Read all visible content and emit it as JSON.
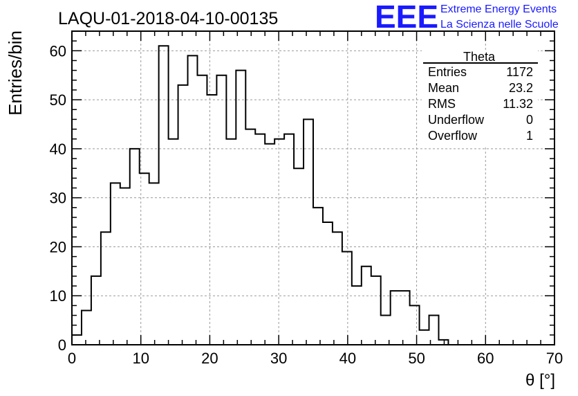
{
  "header": {
    "run_title": "LAQU-01-2018-04-10-00135",
    "logo_text": "EEE",
    "logo_line1": "Extreme Energy Events",
    "logo_line2": "La Scienza nelle Scuole",
    "logo_color": "#1a1aff"
  },
  "stats_box": {
    "title": "Theta",
    "rows": [
      {
        "label": "Entries",
        "value": "1172"
      },
      {
        "label": "Mean",
        "value": "23.2"
      },
      {
        "label": "RMS",
        "value": "11.32"
      },
      {
        "label": "Underflow",
        "value": "0"
      },
      {
        "label": "Overflow",
        "value": "1"
      }
    ]
  },
  "chart_data": {
    "type": "bar",
    "style": "step-histogram",
    "xlabel": "θ [°]",
    "ylabel": "Entries/bin",
    "xlim": [
      0,
      70
    ],
    "ylim": [
      0,
      64
    ],
    "bin_width": 1.4,
    "x_ticks": [
      0,
      10,
      20,
      30,
      40,
      50,
      60,
      70
    ],
    "y_ticks": [
      0,
      10,
      20,
      30,
      40,
      50,
      60
    ],
    "grid": true,
    "values": [
      2,
      7,
      14,
      23,
      33,
      32,
      40,
      35,
      33,
      61,
      42,
      53,
      59,
      55,
      51,
      55,
      42,
      56,
      44,
      43,
      41,
      42,
      43,
      36,
      46,
      28,
      25,
      23,
      19,
      12,
      16,
      14,
      6,
      11,
      11,
      8,
      3,
      6,
      1,
      0,
      0,
      0,
      0,
      0,
      0,
      0,
      0,
      0,
      0,
      0
    ]
  }
}
